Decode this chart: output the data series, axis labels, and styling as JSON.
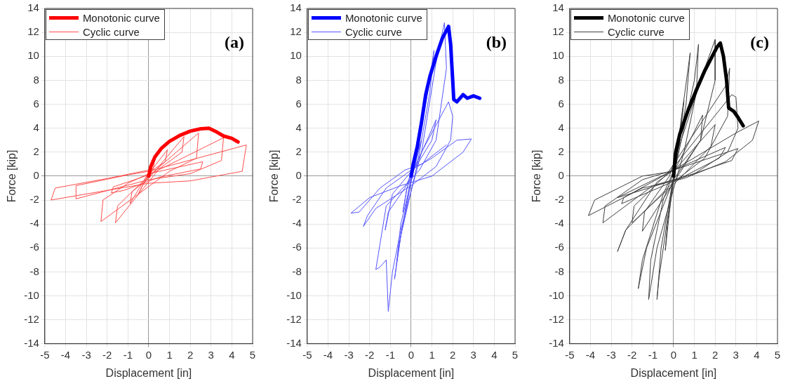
{
  "chart_data": [
    {
      "type": "line",
      "xlabel": "Displacement [in]",
      "ylabel": "Force [kip]",
      "annotations": [
        "(a)"
      ],
      "xlim": [
        -5,
        5
      ],
      "ylim": [
        -14,
        14
      ],
      "xticks": [
        -5,
        -4,
        -3,
        -2,
        -1,
        0,
        1,
        2,
        3,
        4,
        5
      ],
      "yticks": [
        -14,
        -12,
        -10,
        -8,
        -6,
        -4,
        -2,
        0,
        2,
        4,
        6,
        8,
        10,
        12,
        14
      ],
      "grid": true,
      "legend": "top left",
      "marker": "none",
      "line_style": "solid",
      "series": [
        {
          "name": "Monotonic curve",
          "color": "#ff0000",
          "x": [
            0,
            0.1,
            0.3,
            0.6,
            1,
            1.5,
            2,
            2.5,
            2.9,
            3.2,
            3.6,
            4,
            4.3
          ],
          "values": [
            0,
            0.8,
            1.6,
            2.3,
            2.9,
            3.4,
            3.75,
            3.95,
            4.0,
            3.75,
            3.35,
            3.15,
            2.85
          ]
        },
        {
          "name": "Cyclic curve",
          "color": "#ff4d4d",
          "x": [
            0,
            0.3,
            0.2,
            -0.3,
            -0.5,
            -0.3,
            0,
            0.9,
            0.8,
            0,
            -0.9,
            -0.8,
            0,
            1.7,
            1.6,
            0.5,
            -1.6,
            -1.5,
            -0.5,
            0.2,
            2.4,
            2.3,
            1,
            -2.3,
            -2.2,
            -1,
            0,
            2.6,
            2.5,
            0.5,
            -1.2,
            -1.8,
            -1.7,
            0,
            3.6,
            3.5,
            2,
            0,
            -3.5,
            -3.5,
            -1,
            0,
            4.7,
            4.5,
            2,
            0,
            -4.7,
            -4.5,
            -2,
            0
          ],
          "values": [
            0,
            1.5,
            0.5,
            -0.8,
            -1.5,
            -0.8,
            0.2,
            2.2,
            1.2,
            0.3,
            -2.3,
            -1.3,
            -0.2,
            3.3,
            2.0,
            0.6,
            -3.9,
            -2.5,
            -0.8,
            0.3,
            3.6,
            1.5,
            0.4,
            -3.8,
            -2.0,
            -0.6,
            0.2,
            1.2,
            0.6,
            -0.1,
            -1.2,
            -1.4,
            -0.9,
            0.1,
            3.2,
            1.3,
            0.2,
            -0.3,
            -1.9,
            -0.8,
            0.1,
            0.4,
            2.6,
            0.4,
            -0.4,
            -0.6,
            -2.0,
            -1.0,
            -0.2,
            0.5
          ]
        }
      ]
    },
    {
      "type": "line",
      "xlabel": "Displacement [in]",
      "ylabel": "Force [kip]",
      "annotations": [
        "(b)"
      ],
      "xlim": [
        -5,
        5
      ],
      "ylim": [
        -14,
        14
      ],
      "xticks": [
        -5,
        -4,
        -3,
        -2,
        -1,
        0,
        1,
        2,
        3,
        4,
        5
      ],
      "yticks": [
        -14,
        -12,
        -10,
        -8,
        -6,
        -4,
        -2,
        0,
        2,
        4,
        6,
        8,
        10,
        12,
        14
      ],
      "grid": true,
      "legend": "top left",
      "marker": "none",
      "line_style": "solid",
      "series": [
        {
          "name": "Monotonic curve",
          "color": "#0000ff",
          "x": [
            0,
            0.1,
            0.3,
            0.5,
            0.7,
            0.9,
            1.2,
            1.5,
            1.8,
            1.9,
            2,
            2.05,
            2.2,
            2.5,
            2.7,
            3,
            3.3
          ],
          "values": [
            0,
            1,
            2.5,
            4.5,
            6.8,
            8.3,
            10,
            11.5,
            12.5,
            11,
            8,
            6.4,
            6.2,
            6.8,
            6.5,
            6.7,
            6.5
          ]
        },
        {
          "name": "Cyclic curve",
          "color": "#5555ff",
          "x": [
            0,
            0.3,
            0.2,
            -0.2,
            -0.4,
            -0.2,
            0,
            0.5,
            0.2,
            -0.5,
            -0.7,
            -0.5,
            0,
            0.8,
            1.1,
            0.9,
            0.3,
            -0.5,
            -0.8,
            -0.6,
            0,
            1.2,
            1.0,
            0.3,
            -0.9,
            -1.25,
            -1.1,
            -0.3,
            0.5,
            1.2,
            1.6,
            1.7,
            1.2,
            0.4,
            -1.2,
            -1.7,
            -1.5,
            -1.2,
            -1.1,
            -0.9,
            -0.5,
            0.5,
            1.8,
            2.0,
            1.9,
            1.2,
            0,
            -1.7,
            -2.3,
            -2.1,
            -1.2,
            0,
            1.0,
            2.2,
            2.9,
            2.5,
            1.0,
            -0.5,
            -2.0,
            -2.9,
            -2.5,
            -1.5,
            -0.3,
            0.5,
            1.7
          ],
          "values": [
            0,
            2,
            1,
            -1,
            -3,
            -1,
            0.5,
            3,
            1,
            -4,
            -7.3,
            -5,
            -0.5,
            7,
            10.5,
            7,
            1,
            -5,
            -8.6,
            -6,
            0,
            4.7,
            3,
            1,
            -1.5,
            -4.5,
            -3,
            -1,
            2,
            9.5,
            12.8,
            9,
            3,
            0.5,
            -2.5,
            -7.8,
            -7.6,
            -7,
            -11.3,
            -8,
            -4.5,
            2,
            6.2,
            5,
            3,
            0.8,
            -0.8,
            -2.7,
            -4.2,
            -3.3,
            -1,
            0.5,
            1.5,
            3,
            3.1,
            2,
            0,
            -0.8,
            -1.8,
            -3.1,
            -3,
            -1,
            0.5,
            1,
            2.6
          ]
        }
      ]
    },
    {
      "type": "line",
      "xlabel": "Displacement [in]",
      "ylabel": "Force [kip]",
      "annotations": [
        "(c)"
      ],
      "xlim": [
        -5,
        5
      ],
      "ylim": [
        -14,
        14
      ],
      "xticks": [
        -5,
        -4,
        -3,
        -2,
        -1,
        0,
        1,
        2,
        3,
        4,
        5
      ],
      "yticks": [
        -14,
        -12,
        -10,
        -8,
        -6,
        -4,
        -2,
        0,
        2,
        4,
        6,
        8,
        10,
        12,
        14
      ],
      "grid": true,
      "legend": "top left",
      "marker": "none",
      "line_style": "solid",
      "series": [
        {
          "name": "Monotonic curve",
          "color": "#000000",
          "x": [
            0,
            0.1,
            0.3,
            0.7,
            1.1,
            1.5,
            1.8,
            2.1,
            2.25,
            2.4,
            2.55,
            2.65,
            2.9,
            3.1,
            3.35
          ],
          "values": [
            0,
            2,
            3.5,
            5.5,
            7.2,
            8.8,
            9.8,
            10.8,
            11.1,
            10,
            8,
            5.7,
            5.4,
            4.9,
            4.2
          ]
        },
        {
          "name": "Cyclic curve",
          "color": "#404040",
          "x": [
            0,
            0.4,
            0.5,
            0.3,
            -0.3,
            -0.4,
            -0.2,
            0,
            0.7,
            0.8,
            0.6,
            0,
            -0.7,
            -0.8,
            -0.6,
            0,
            1.0,
            1.2,
            1.1,
            0.5,
            -0.8,
            -1.2,
            -1.1,
            -0.5,
            0,
            1.4,
            1.3,
            0.2,
            -1.5,
            -1.4,
            -0.2,
            1.5,
            2.0,
            2.0,
            1.3,
            0,
            -1.3,
            -1.7,
            -1.5,
            -0.5,
            0,
            2.0,
            1.8,
            0.3,
            -2.0,
            -1.9,
            -0.3,
            2.5,
            2.7,
            2.6,
            1.5,
            0,
            -2.3,
            -2.7,
            -2.3,
            -0.8,
            0,
            2.5,
            2.2,
            0.2,
            -2.5,
            -2.4,
            -0.2,
            2.8,
            3.0,
            3.1,
            2.6,
            1,
            -1,
            -3.4,
            -3.3,
            -1.5,
            0,
            3.1,
            2.8,
            0.3,
            -2.7,
            0,
            3.0,
            4.1,
            3.8,
            2.5,
            0.5,
            -1.5,
            -4.1,
            -3.8,
            -1.5,
            0
          ],
          "values": [
            0,
            5,
            6.3,
            3,
            -4,
            -6.2,
            -3,
            0,
            9,
            10.3,
            6,
            0,
            -8.5,
            -10.3,
            -6,
            0,
            8,
            11,
            7,
            2,
            -6,
            -10.3,
            -7,
            -2,
            0.3,
            5.1,
            3,
            0,
            -4.6,
            -3,
            0,
            9,
            11.4,
            8,
            3,
            -0.3,
            -6,
            -9.4,
            -7,
            -1.5,
            0.4,
            4.3,
            2.5,
            -0.2,
            -3.9,
            -2.5,
            0.2,
            7.5,
            9,
            5,
            1.5,
            -0.5,
            -4.5,
            -6.3,
            -4.5,
            -0.5,
            0.5,
            2.4,
            1.5,
            -0.3,
            -2.3,
            -1.8,
            0.3,
            6.8,
            6.6,
            4,
            2,
            0.2,
            -0.8,
            -3.9,
            -2.5,
            -0.3,
            0.5,
            2.3,
            1.3,
            -0.2,
            -1.8,
            0.5,
            3.6,
            4.6,
            3,
            1.2,
            -0.2,
            -1.0,
            -3.3,
            -2,
            0,
            0.4
          ]
        }
      ]
    }
  ]
}
